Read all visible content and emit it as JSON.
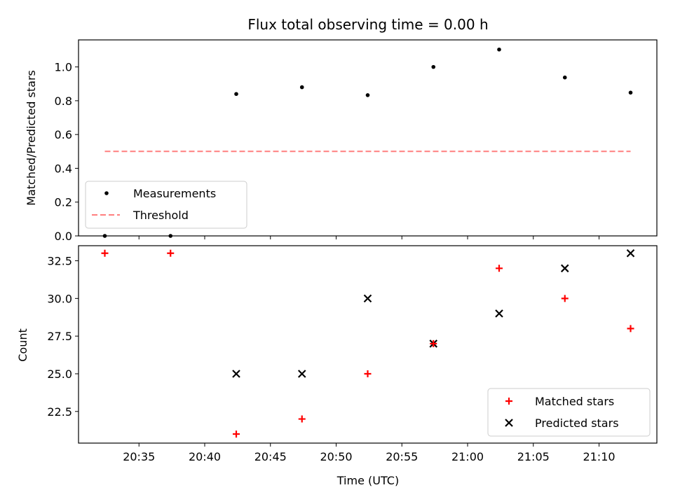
{
  "chart_data": [
    {
      "type": "scatter",
      "title": "Flux total observing time = 0.00 h",
      "xlabel": "",
      "ylabel": "Matched/Predicted stars",
      "ylim": [
        0,
        1.16
      ],
      "yticks": [
        0.0,
        0.2,
        0.4,
        0.6,
        0.8,
        1.0
      ],
      "ytick_labels": [
        "0.0",
        "0.2",
        "0.4",
        "0.6",
        "0.8",
        "1.0"
      ],
      "x": [
        "20:32:24",
        "20:37:24",
        "20:42:24",
        "20:47:24",
        "20:52:24",
        "20:57:24",
        "21:02:24",
        "21:07:24",
        "21:12:24"
      ],
      "grid": false,
      "legend_placement": "lower-left",
      "series": [
        {
          "name": "Measurements",
          "marker": "dot",
          "color": "#000000",
          "values": [
            0.0,
            0.0,
            0.84,
            0.88,
            0.833,
            1.0,
            1.103,
            0.9375,
            0.848
          ]
        },
        {
          "name": "Threshold",
          "style": "dashed-line",
          "color": "#ff7f7f",
          "x": [
            "20:32:24",
            "21:12:24"
          ],
          "values": [
            0.5,
            0.5
          ]
        }
      ]
    },
    {
      "type": "scatter",
      "title": "",
      "xlabel": "Time (UTC)",
      "ylabel": "Count",
      "ylim": [
        20.4,
        33.5
      ],
      "xlim": [
        "20:30:24",
        "21:14:24"
      ],
      "yticks": [
        22.5,
        25.0,
        27.5,
        30.0,
        32.5
      ],
      "ytick_labels": [
        "22.5",
        "25.0",
        "27.5",
        "30.0",
        "32.5"
      ],
      "xticks": [
        "20:35",
        "20:40",
        "20:45",
        "20:50",
        "20:55",
        "21:00",
        "21:05",
        "21:10"
      ],
      "x": [
        "20:32:24",
        "20:37:24",
        "20:42:24",
        "20:47:24",
        "20:52:24",
        "20:57:24",
        "21:02:24",
        "21:07:24",
        "21:12:24"
      ],
      "grid": false,
      "legend_placement": "lower-right",
      "series": [
        {
          "name": "Matched stars",
          "marker": "plus",
          "color": "#ff0000",
          "values": [
            33,
            33,
            21,
            22,
            25,
            27,
            32,
            30,
            28
          ]
        },
        {
          "name": "Predicted stars",
          "marker": "x",
          "color": "#000000",
          "values": [
            null,
            null,
            25,
            25,
            30,
            27,
            29,
            32,
            33
          ]
        }
      ]
    }
  ]
}
